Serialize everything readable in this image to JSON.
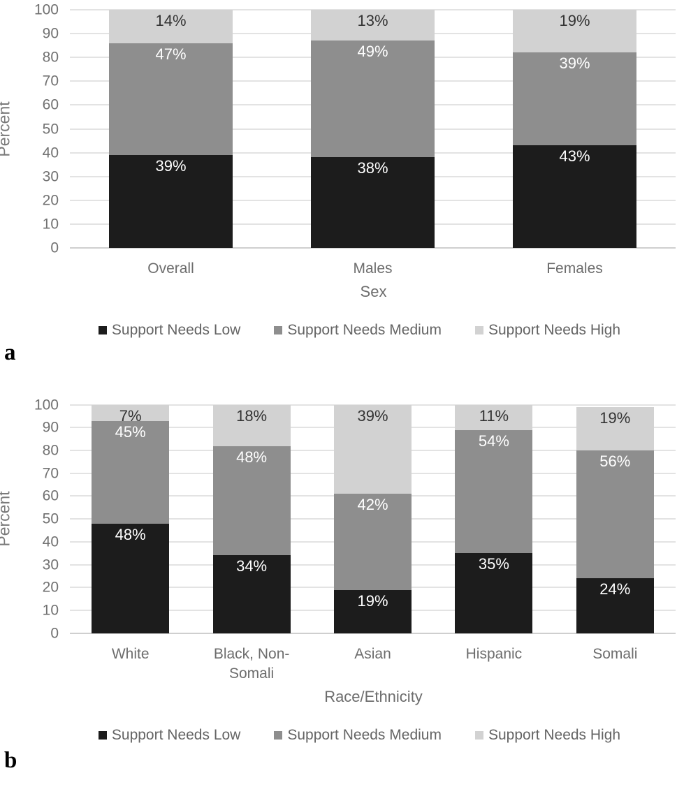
{
  "colors": {
    "series_low": "#1c1c1c",
    "series_medium": "#8e8e8e",
    "series_high": "#d2d2d2",
    "gridline": "#e3e3e3",
    "axis_text": "#717171"
  },
  "label_suffix": "%",
  "chart_data": [
    {
      "type": "bar",
      "stacked": true,
      "panel_letter": "a",
      "categories": [
        "Overall",
        "Males",
        "Females"
      ],
      "series": [
        {
          "name": "Support Needs Low",
          "color": "#1c1c1c",
          "label_color": "#ffffff",
          "values": [
            39,
            38,
            43
          ]
        },
        {
          "name": "Support Needs Medium",
          "color": "#8e8e8e",
          "label_color": "#ffffff",
          "values": [
            47,
            49,
            39
          ]
        },
        {
          "name": "Support Needs High",
          "color": "#d2d2d2",
          "label_color": "#333333",
          "values": [
            14,
            13,
            19
          ]
        }
      ],
      "xlabel": "Sex",
      "ylabel": "Percent",
      "ylim": [
        0,
        100
      ],
      "yticks": [
        0,
        10,
        20,
        30,
        40,
        50,
        60,
        70,
        80,
        90,
        100
      ],
      "grid": true,
      "legend_position": "bottom",
      "bar_width_pct": 61
    },
    {
      "type": "bar",
      "stacked": true,
      "panel_letter": "b",
      "categories": [
        "White",
        "Black, Non-Somali",
        "Asian",
        "Hispanic",
        "Somali"
      ],
      "series": [
        {
          "name": "Support Needs Low",
          "color": "#1c1c1c",
          "label_color": "#ffffff",
          "values": [
            48,
            34,
            19,
            35,
            24
          ]
        },
        {
          "name": "Support Needs Medium",
          "color": "#8e8e8e",
          "label_color": "#ffffff",
          "values": [
            45,
            48,
            42,
            54,
            56
          ]
        },
        {
          "name": "Support Needs High",
          "color": "#d2d2d2",
          "label_color": "#333333",
          "values": [
            7,
            18,
            39,
            11,
            19
          ]
        }
      ],
      "xlabel": "Race/Ethnicity",
      "ylabel": "Percent",
      "ylim": [
        0,
        100
      ],
      "yticks": [
        0,
        10,
        20,
        30,
        40,
        50,
        60,
        70,
        80,
        90,
        100
      ],
      "grid": true,
      "legend_position": "bottom",
      "bar_width_pct": 64
    }
  ]
}
